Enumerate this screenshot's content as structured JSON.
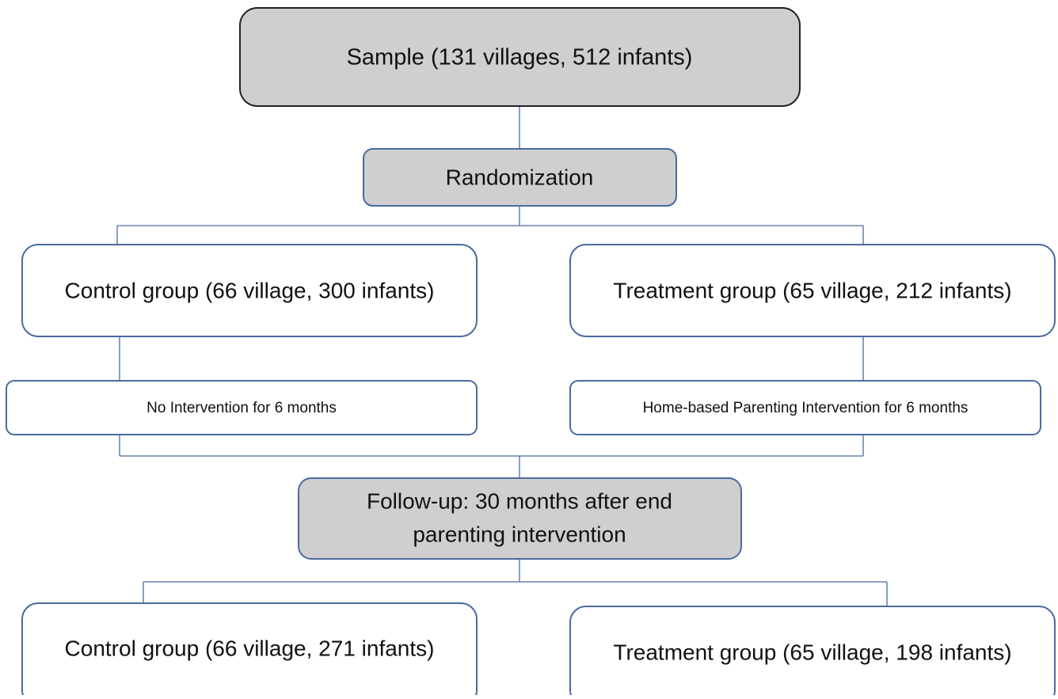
{
  "nodes": [
    {
      "label": "Sample (131 villages, 512 infants)"
    },
    {
      "label": "Randomization"
    },
    {
      "label": "Control group (66 village, 300 infants)"
    },
    {
      "label": "Treatment group (65 village, 212 infants)"
    },
    {
      "label": "No Intervention for 6 months"
    },
    {
      "label": "Home-based Parenting Intervention for 6 months"
    },
    {
      "lines": [
        "Follow-up: 30 months after end",
        "parenting intervention"
      ]
    },
    {
      "label": "Control group (66 village, 271 infants)"
    },
    {
      "label": "Treatment group (65 village, 198 infants)"
    }
  ]
}
